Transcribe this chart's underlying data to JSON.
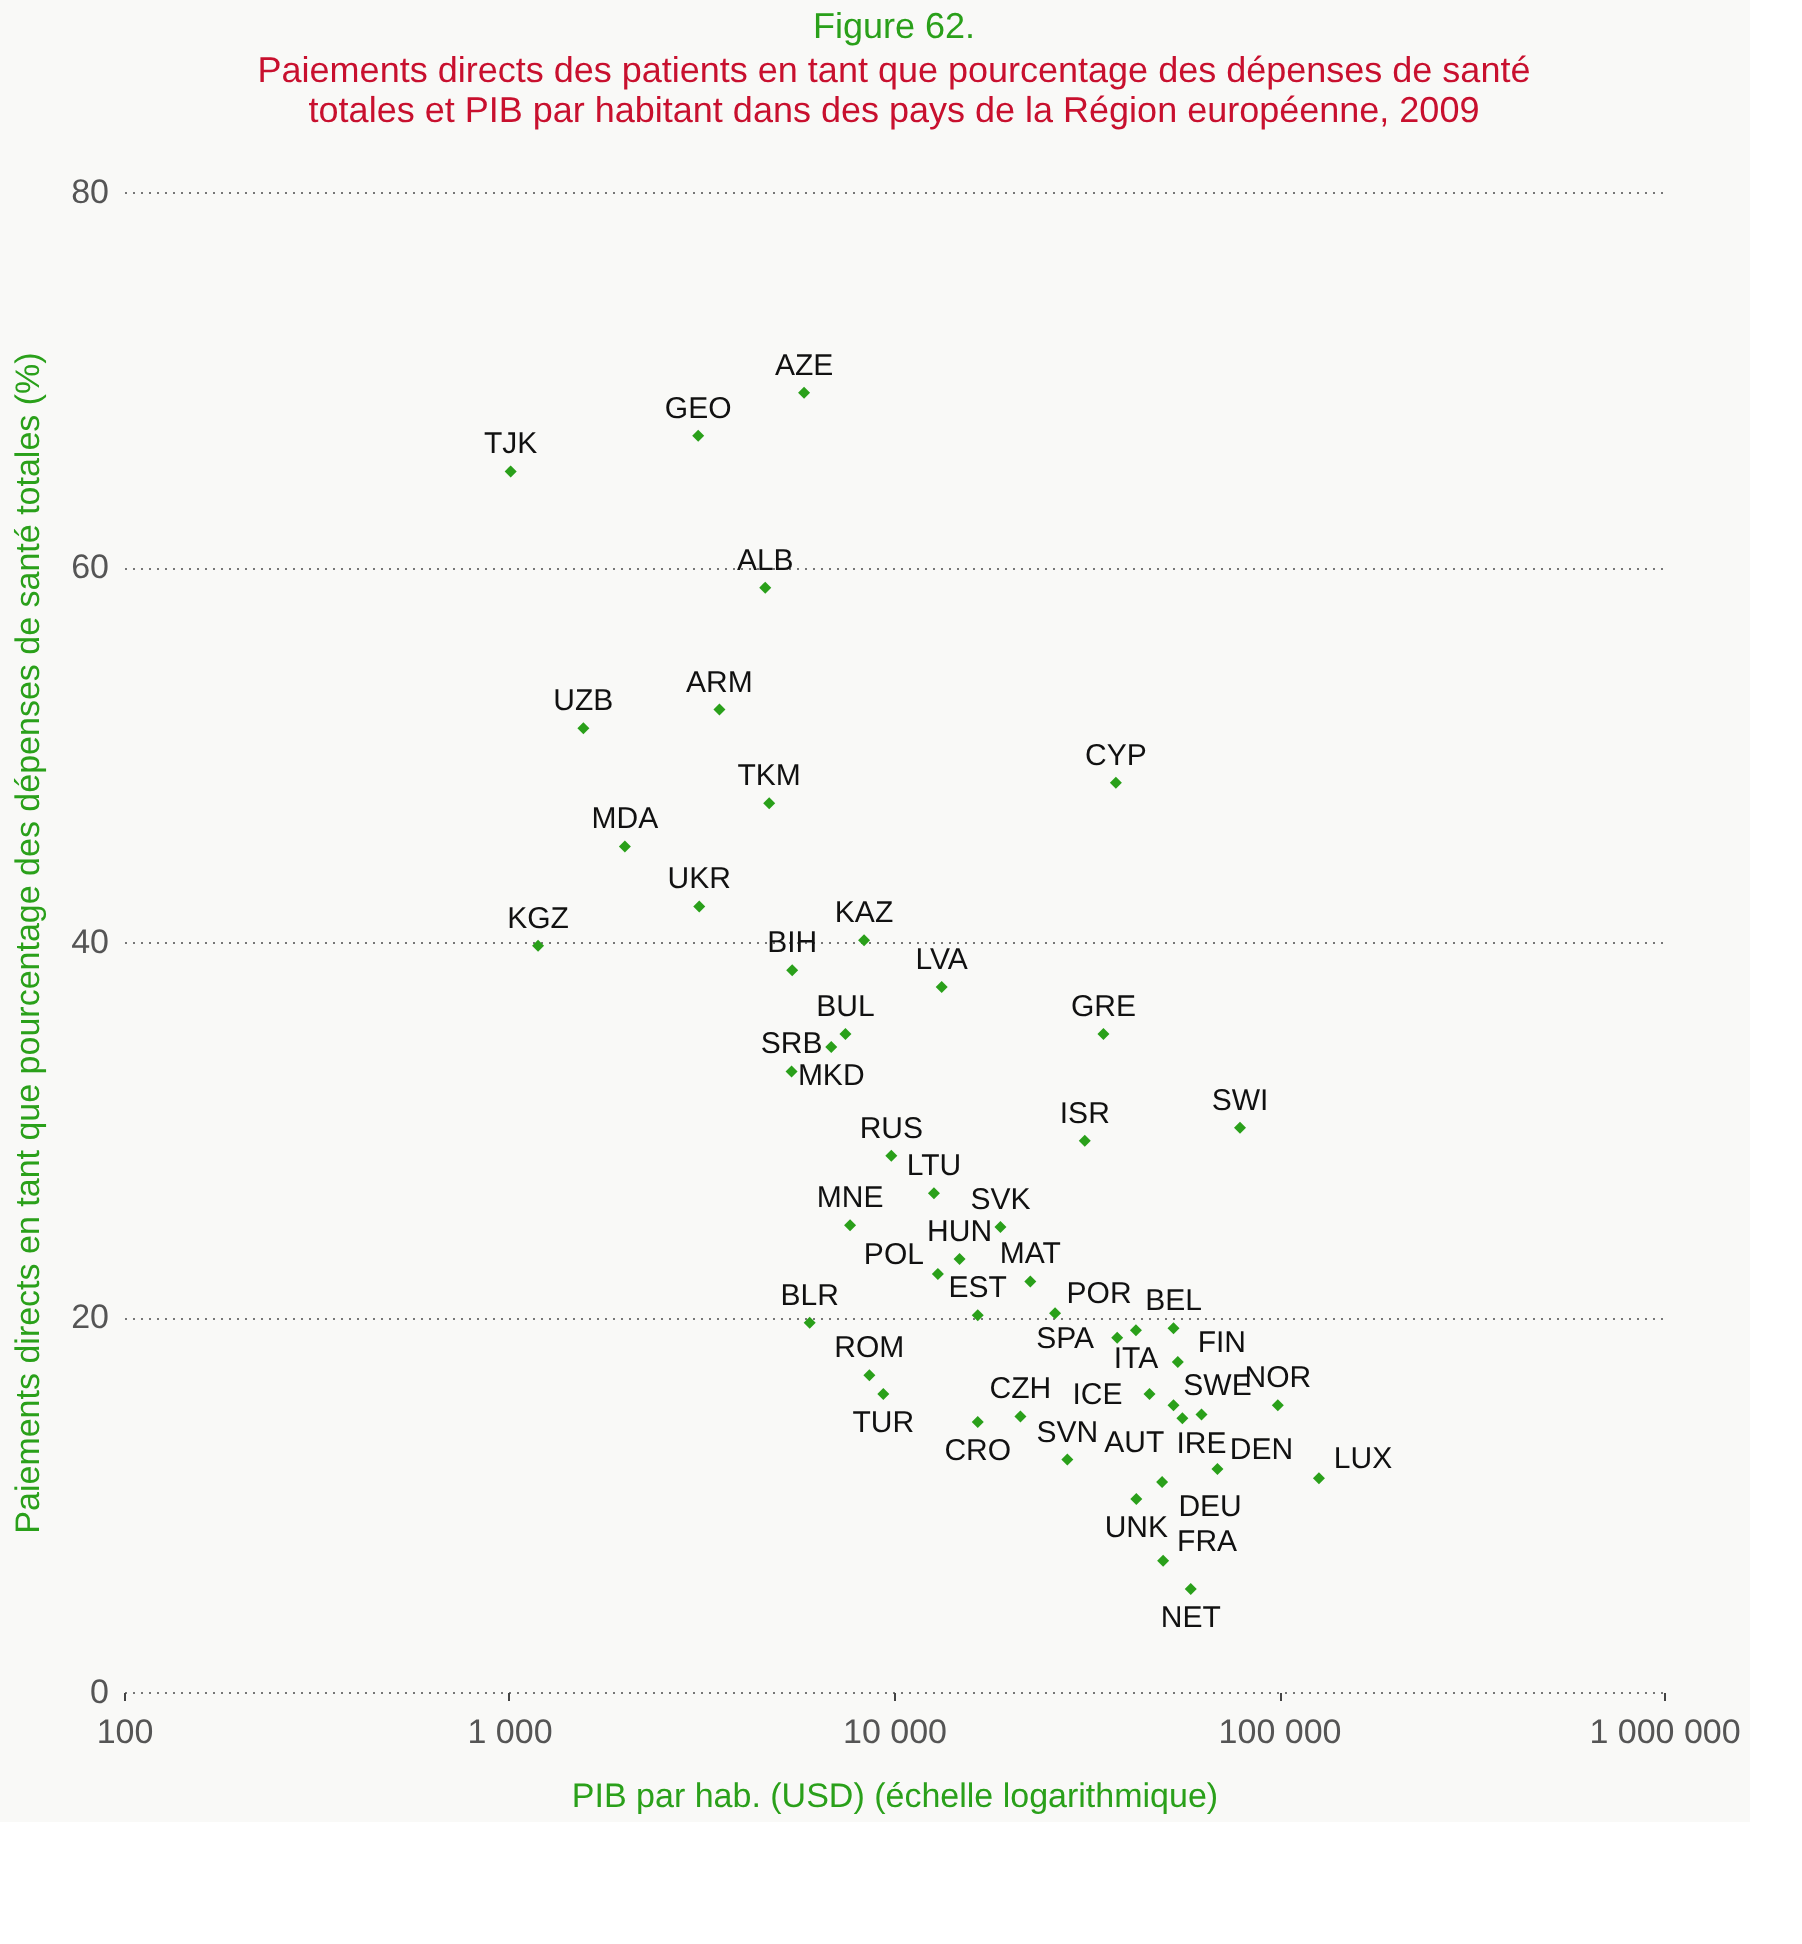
{
  "chart_data": {
    "type": "scatter",
    "title": "Figure 62.",
    "subtitle": "Paiements directs des patients en tant que pourcentage des dépenses de santé totales et PIB par habitant dans des pays de la Région européenne, 2009",
    "xlabel": "PIB par hab. (USD) (échelle logarithmique)",
    "ylabel": "Paiements directs en tant que pourcentage des dépenses de santé totales (%)",
    "log": "x",
    "xlim": [
      100,
      1000000
    ],
    "xticks": [
      100,
      {
        "value": 1000,
        "label": "1 000"
      },
      {
        "value": 10000,
        "label": "10 000"
      },
      {
        "value": 100000,
        "label": "100 000"
      },
      {
        "value": 1000000,
        "label": "1 000 000"
      }
    ],
    "ylim": [
      0,
      80
    ],
    "yticks": [
      0,
      20,
      40,
      60,
      80
    ],
    "grid": "y",
    "marker": "diamond",
    "series": [
      {
        "color": "#2aa01a",
        "x": [
          1010,
          3100,
          5840,
          4630,
          1560,
          3520,
          4740,
          37700,
          2000,
          3120,
          1190,
          8360,
          5440,
          13300,
          7480,
          6870,
          5420,
          35000,
          31300,
          79200,
          9840,
          12700,
          18900,
          7690,
          14800,
          22600,
          13000,
          6040,
          16500,
          26200,
          42500,
          38000,
          53200,
          54600,
          8630,
          9380,
          16500,
          21300,
          46100,
          99300,
          53200,
          56100,
          62900,
          69200,
          49700,
          42600,
          50000,
          59000,
          127000,
          28200
        ],
        "values": [
          65.1,
          67.0,
          69.3,
          58.9,
          51.4,
          52.4,
          47.4,
          48.5,
          45.1,
          41.9,
          39.8,
          40.1,
          38.5,
          37.6,
          35.1,
          34.4,
          33.1,
          35.1,
          29.4,
          30.1,
          28.6,
          26.6,
          24.8,
          24.9,
          23.1,
          21.9,
          22.3,
          19.7,
          20.1,
          20.2,
          19.3,
          18.9,
          19.4,
          17.6,
          16.9,
          15.9,
          14.4,
          14.7,
          15.9,
          15.3,
          15.3,
          14.6,
          14.8,
          11.9,
          11.2,
          10.3,
          7.0,
          5.5,
          11.4,
          12.4
        ]
      }
    ],
    "annotations": [
      {
        "text": "TJK",
        "x": 1010,
        "y": 65.1
      },
      {
        "text": "GEO",
        "x": 3100,
        "y": 67.0
      },
      {
        "text": "AZE",
        "x": 5840,
        "y": 69.3
      },
      {
        "text": "ALB",
        "x": 4630,
        "y": 58.9
      },
      {
        "text": "UZB",
        "x": 1560,
        "y": 51.4
      },
      {
        "text": "ARM",
        "x": 3520,
        "y": 52.4
      },
      {
        "text": "TKM",
        "x": 4740,
        "y": 47.4
      },
      {
        "text": "CYP",
        "x": 37700,
        "y": 48.5
      },
      {
        "text": "MDA",
        "x": 2000,
        "y": 45.1
      },
      {
        "text": "UKR",
        "x": 3120,
        "y": 41.9
      },
      {
        "text": "KGZ",
        "x": 1190,
        "y": 39.8
      },
      {
        "text": "KAZ",
        "x": 8360,
        "y": 40.1
      },
      {
        "text": "BIH",
        "x": 5440,
        "y": 38.5
      },
      {
        "text": "LVA",
        "x": 13300,
        "y": 37.6
      },
      {
        "text": "BUL",
        "x": 7480,
        "y": 35.1
      },
      {
        "text": "MKD",
        "x": 6870,
        "y": 34.4
      },
      {
        "text": "SRB",
        "x": 5420,
        "y": 33.1
      },
      {
        "text": "GRE",
        "x": 35000,
        "y": 35.1
      },
      {
        "text": "ISR",
        "x": 31300,
        "y": 29.4
      },
      {
        "text": "SWI",
        "x": 79200,
        "y": 30.1
      },
      {
        "text": "RUS",
        "x": 9840,
        "y": 28.6
      },
      {
        "text": "LTU",
        "x": 12700,
        "y": 26.6
      },
      {
        "text": "SVK",
        "x": 18900,
        "y": 24.8
      },
      {
        "text": "MNE",
        "x": 7690,
        "y": 24.9
      },
      {
        "text": "HUN",
        "x": 14800,
        "y": 23.1
      },
      {
        "text": "MAT",
        "x": 22600,
        "y": 21.9
      },
      {
        "text": "POL",
        "x": 13000,
        "y": 22.3
      },
      {
        "text": "BLR",
        "x": 6040,
        "y": 19.7
      },
      {
        "text": "EST",
        "x": 16500,
        "y": 20.1
      },
      {
        "text": "POR",
        "x": 26200,
        "y": 20.2
      },
      {
        "text": "ITA",
        "x": 42500,
        "y": 19.3
      },
      {
        "text": "SPA",
        "x": 38000,
        "y": 18.9
      },
      {
        "text": "BEL",
        "x": 53200,
        "y": 19.4
      },
      {
        "text": "FIN",
        "x": 54600,
        "y": 17.6
      },
      {
        "text": "ROM",
        "x": 8630,
        "y": 16.9
      },
      {
        "text": "TUR",
        "x": 9380,
        "y": 15.9
      },
      {
        "text": "CRO",
        "x": 16500,
        "y": 14.4
      },
      {
        "text": "CZH",
        "x": 21300,
        "y": 14.7
      },
      {
        "text": "ICE",
        "x": 46100,
        "y": 15.9
      },
      {
        "text": "NOR",
        "x": 99300,
        "y": 15.3
      },
      {
        "text": "SWE",
        "x": 53200,
        "y": 15.3
      },
      {
        "text": "AUT",
        "x": 56100,
        "y": 14.6
      },
      {
        "text": "IRE",
        "x": 62900,
        "y": 14.8
      },
      {
        "text": "DEN",
        "x": 69200,
        "y": 11.9
      },
      {
        "text": "DEU",
        "x": 49700,
        "y": 11.2
      },
      {
        "text": "UNK",
        "x": 42600,
        "y": 10.3
      },
      {
        "text": "FRA",
        "x": 50000,
        "y": 7.0
      },
      {
        "text": "NET",
        "x": 59000,
        "y": 5.5
      },
      {
        "text": "LUX",
        "x": 127000,
        "y": 11.4
      },
      {
        "text": "SVN",
        "x": 28200,
        "y": 12.4
      }
    ]
  }
}
